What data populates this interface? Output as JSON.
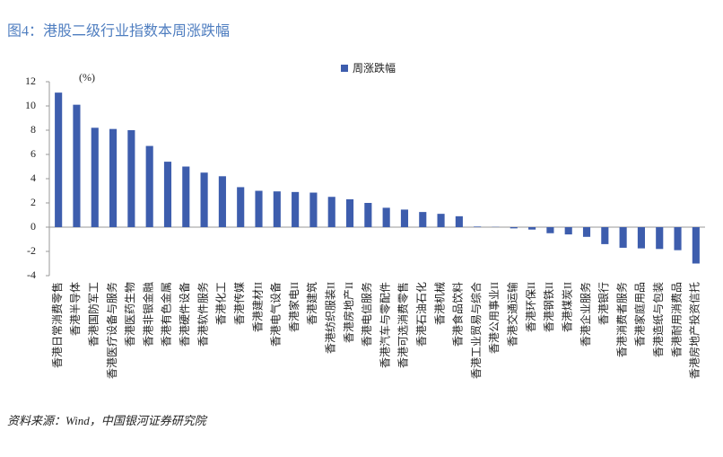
{
  "chart_data": {
    "type": "bar",
    "title": "图4：港股二级行业指数本周涨跌幅",
    "y_unit": "(%)",
    "source": "资料来源：Wind，中国银河证券研究院",
    "categories": [
      "香港日常消费零售",
      "香港半导体",
      "香港国防军工",
      "香港医疗设备与服务",
      "香港医药生物",
      "香港非银金融",
      "香港有色金属",
      "香港硬件设备",
      "香港软件服务",
      "香港化工",
      "香港传媒",
      "香港建材II",
      "香港电气设备",
      "香港家电II",
      "香港建筑",
      "香港纺织服装II",
      "香港房地产II",
      "香港电信服务",
      "香港汽车与零配件",
      "香港可选消费零售",
      "香港石油石化",
      "香港机械",
      "香港食品饮料",
      "香港工业贸易与综合",
      "香港公用事业II",
      "香港交通运输",
      "香港环保II",
      "香港钢铁II",
      "香港煤炭II",
      "香港企业服务",
      "香港银行",
      "香港消费者服务",
      "香港家庭用品",
      "香港造纸与包装",
      "香港耐用消费品",
      "香港房地产投资信托"
    ],
    "series": [
      {
        "name": "周涨跌幅",
        "color": "#3d5dad",
        "values": [
          11.1,
          10.1,
          8.2,
          8.1,
          8.0,
          6.7,
          5.4,
          5.0,
          4.5,
          4.2,
          3.3,
          3.0,
          2.95,
          2.9,
          2.85,
          2.5,
          2.3,
          2.0,
          1.6,
          1.45,
          1.25,
          1.1,
          0.9,
          0.05,
          0.02,
          -0.1,
          -0.2,
          -0.5,
          -0.6,
          -0.8,
          -1.4,
          -1.7,
          -1.75,
          -1.8,
          -1.9,
          -3.0
        ]
      }
    ],
    "ylim": [
      -4,
      12
    ],
    "yticks": [
      -4,
      -2,
      0,
      2,
      4,
      6,
      8,
      10,
      12
    ],
    "grid": false,
    "legend": "top"
  }
}
